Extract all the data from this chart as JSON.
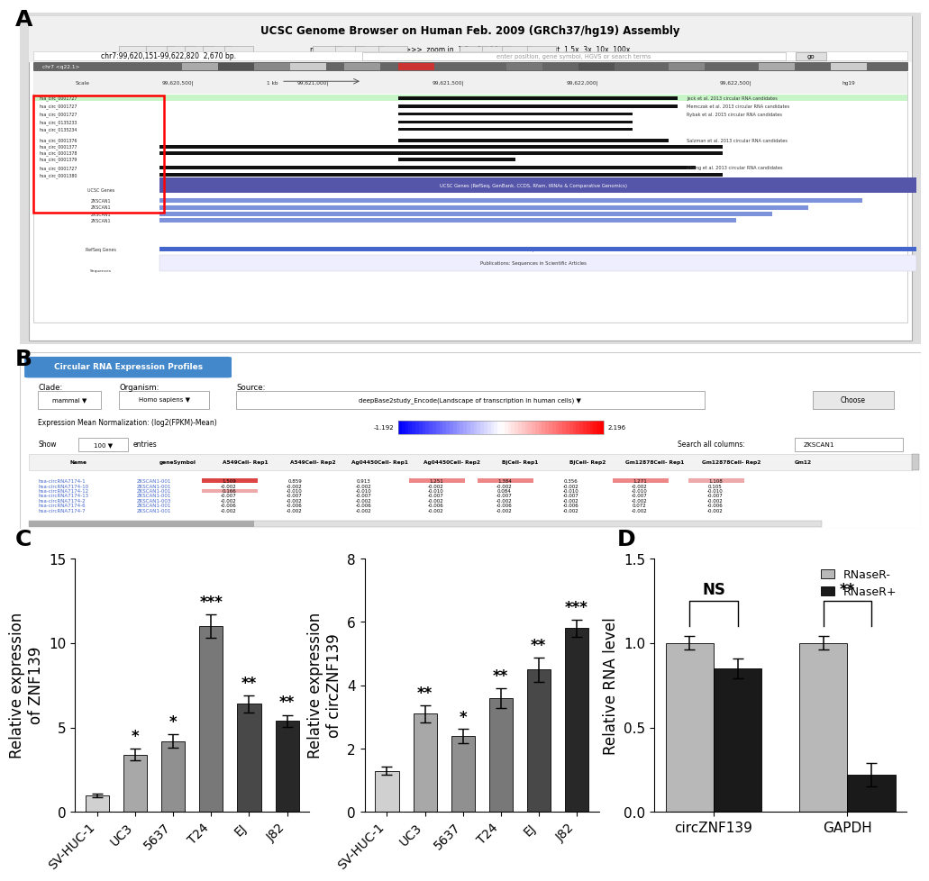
{
  "panel_C_left": {
    "categories": [
      "SV-HUC-1",
      "UC3",
      "5637",
      "T24",
      "EJ",
      "J82"
    ],
    "values": [
      1.0,
      3.4,
      4.2,
      11.0,
      6.4,
      5.4
    ],
    "errors": [
      0.1,
      0.35,
      0.4,
      0.7,
      0.5,
      0.35
    ],
    "colors": [
      "#d0d0d0",
      "#a8a8a8",
      "#909090",
      "#787878",
      "#484848",
      "#282828"
    ],
    "ylabel": "Relative expression\nof ZNF139",
    "ylim": [
      0,
      15
    ],
    "yticks": [
      0,
      5,
      10,
      15
    ],
    "significance": [
      "",
      "*",
      "*",
      "***",
      "**",
      "**"
    ]
  },
  "panel_C_right": {
    "categories": [
      "SV-HUC-1",
      "UC3",
      "5637",
      "T24",
      "EJ",
      "J82"
    ],
    "values": [
      1.3,
      3.1,
      2.4,
      3.6,
      4.5,
      5.8
    ],
    "errors": [
      0.12,
      0.28,
      0.22,
      0.32,
      0.38,
      0.28
    ],
    "colors": [
      "#d0d0d0",
      "#a8a8a8",
      "#909090",
      "#787878",
      "#484848",
      "#282828"
    ],
    "ylabel": "Relative expression\nof circZNF139",
    "ylim": [
      0,
      8
    ],
    "yticks": [
      0,
      2,
      4,
      6,
      8
    ],
    "significance": [
      "",
      "**",
      "*",
      "**",
      "**",
      "***"
    ]
  },
  "panel_D": {
    "categories": [
      "circZNF139",
      "GAPDH"
    ],
    "rnaser_minus": [
      1.0,
      1.0
    ],
    "rnaser_plus": [
      0.85,
      0.22
    ],
    "errors_minus": [
      0.04,
      0.04
    ],
    "errors_plus": [
      0.06,
      0.07
    ],
    "ylabel": "Relative RNA level",
    "ylim": [
      0,
      1.5
    ],
    "yticks": [
      0.0,
      0.5,
      1.0,
      1.5
    ],
    "color_minus": "#b8b8b8",
    "color_plus": "#1a1a1a",
    "significance": [
      "NS",
      "**"
    ],
    "legend_labels": [
      "RNaseR-",
      "RNaseR+"
    ]
  },
  "label_fontsize": 18,
  "tick_fontsize": 11,
  "axis_label_fontsize": 12,
  "sig_fontsize": 12,
  "panel_A_bg": "#e8e8e8",
  "panel_B_bg": "#f4f4f4"
}
